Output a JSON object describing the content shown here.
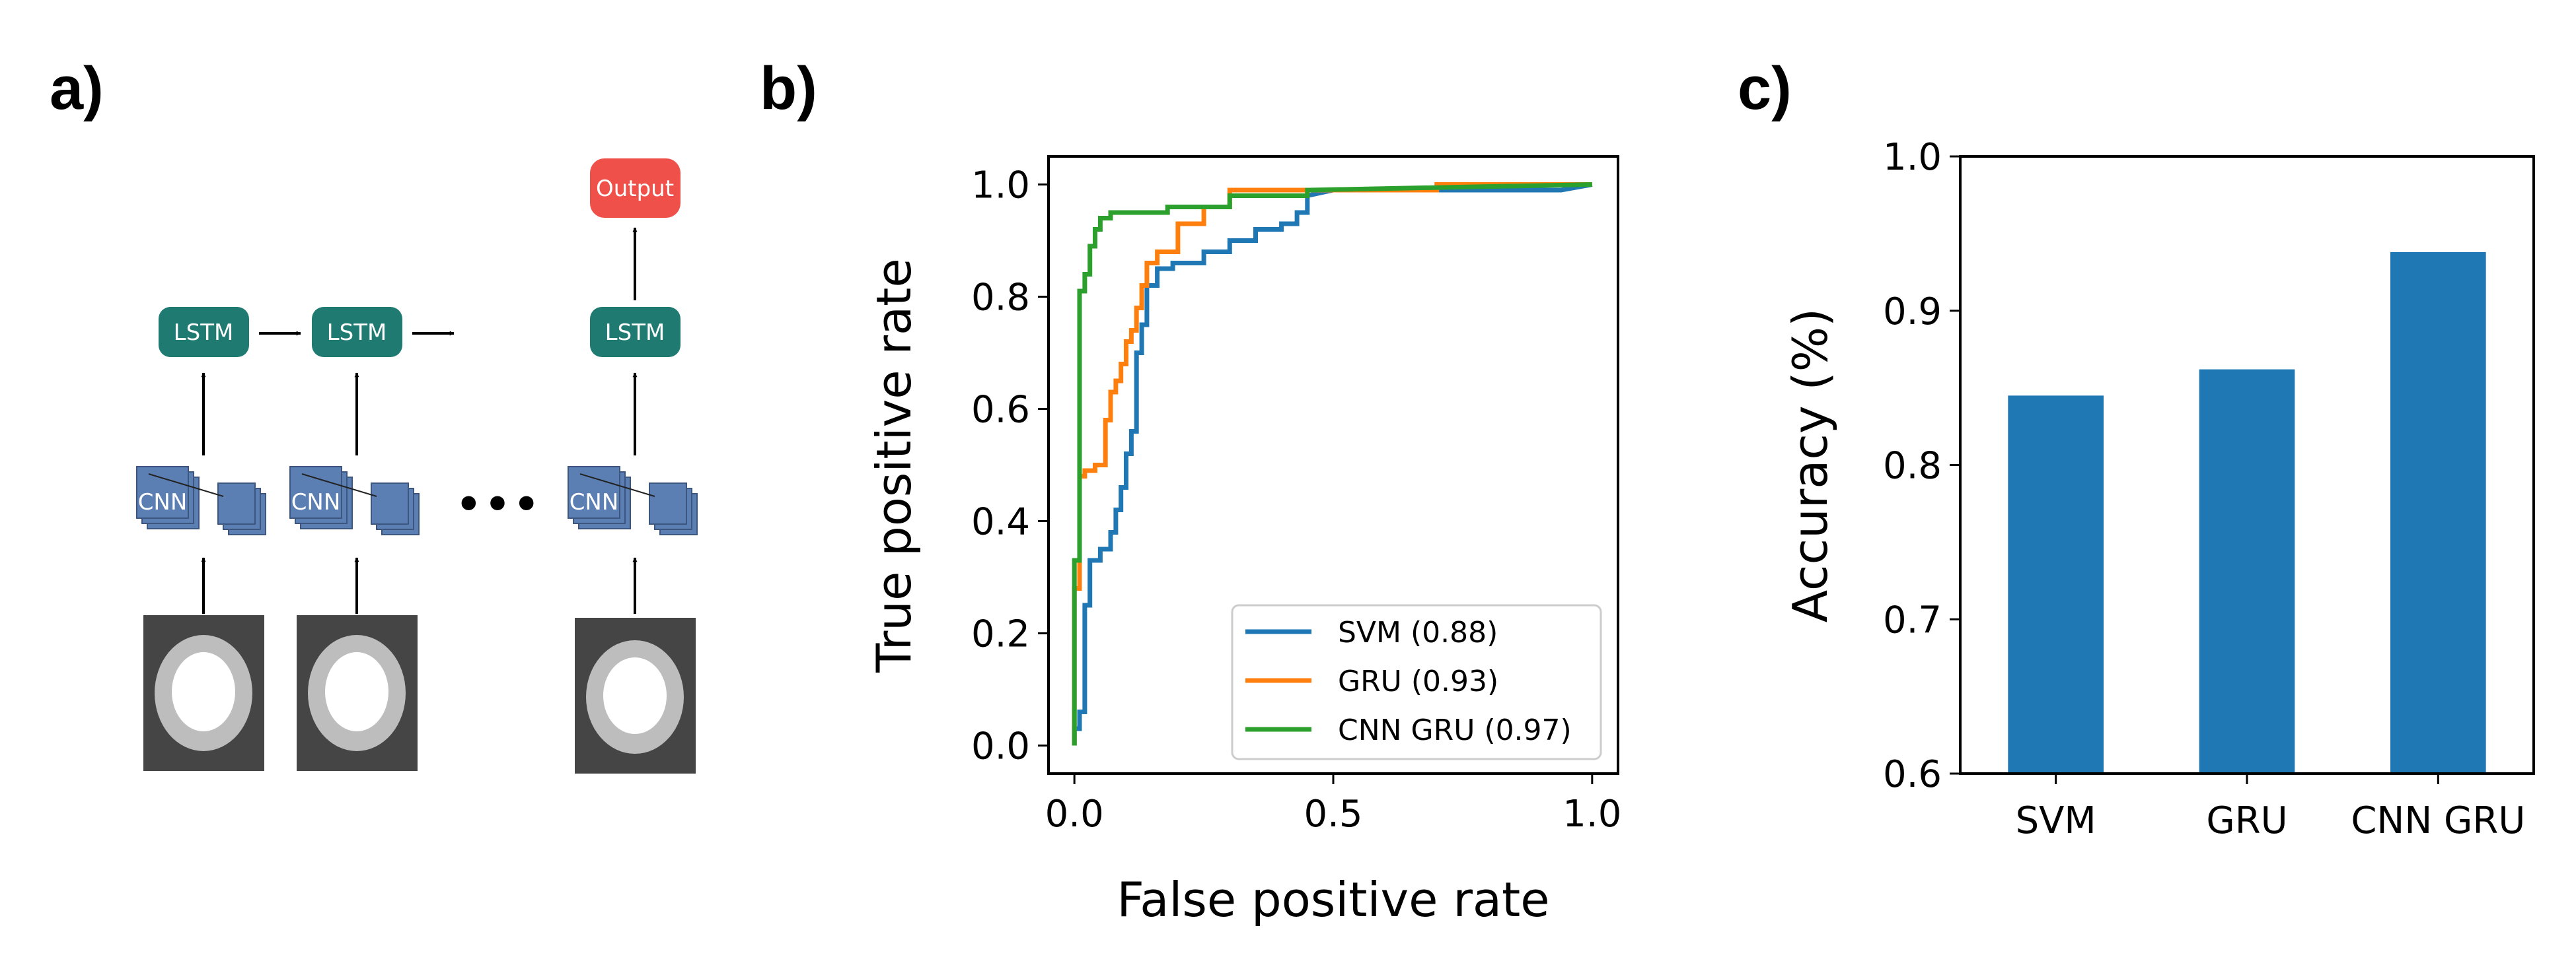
{
  "panels": {
    "a": "a)",
    "b": "b)",
    "c": "c)"
  },
  "diagram": {
    "output_label": "Output",
    "lstm_labels": [
      "LSTM",
      "LSTM",
      "LSTM"
    ],
    "cnn_labels": [
      "CNN",
      "CNN",
      "CNN"
    ],
    "ellipsis": "•••",
    "colors": {
      "lstm": "#1f7a72",
      "output": "#f0504a",
      "cnn": "#5b7fb3",
      "image_bg": "#454545",
      "ring": "#bdbdbd"
    }
  },
  "chart_data": [
    {
      "type": "line",
      "xlabel": "False positive rate",
      "ylabel": "True positive rate",
      "xlim": [
        -0.05,
        1.05
      ],
      "ylim": [
        -0.05,
        1.05
      ],
      "xticks": [
        "0.0",
        "0.5",
        "1.0"
      ],
      "xtick_values": [
        0,
        0.5,
        1
      ],
      "yticks": [
        "0.0",
        "0.2",
        "0.4",
        "0.6",
        "0.8",
        "1.0"
      ],
      "ytick_values": [
        0,
        0.2,
        0.4,
        0.6,
        0.8,
        1
      ],
      "grid": false,
      "legend_position": "lower-right",
      "series": [
        {
          "name": "SVM (0.88)",
          "color": "#1f77b4",
          "x": [
            0.0,
            0.0,
            0.01,
            0.01,
            0.02,
            0.02,
            0.03,
            0.03,
            0.05,
            0.05,
            0.07,
            0.07,
            0.08,
            0.08,
            0.09,
            0.09,
            0.1,
            0.1,
            0.11,
            0.11,
            0.12,
            0.12,
            0.13,
            0.13,
            0.14,
            0.14,
            0.16,
            0.16,
            0.19,
            0.19,
            0.25,
            0.25,
            0.3,
            0.3,
            0.35,
            0.35,
            0.4,
            0.4,
            0.43,
            0.43,
            0.45,
            0.45,
            0.5,
            0.94,
            1.0
          ],
          "y": [
            0.0,
            0.03,
            0.03,
            0.06,
            0.06,
            0.25,
            0.25,
            0.33,
            0.33,
            0.35,
            0.35,
            0.38,
            0.38,
            0.42,
            0.42,
            0.46,
            0.46,
            0.52,
            0.52,
            0.56,
            0.56,
            0.7,
            0.7,
            0.75,
            0.75,
            0.82,
            0.82,
            0.85,
            0.85,
            0.86,
            0.86,
            0.88,
            0.88,
            0.9,
            0.9,
            0.92,
            0.92,
            0.93,
            0.93,
            0.95,
            0.95,
            0.98,
            0.99,
            0.99,
            1.0
          ]
        },
        {
          "name": "GRU (0.93)",
          "color": "#ff7f0e",
          "x": [
            0.0,
            0.0,
            0.01,
            0.01,
            0.02,
            0.02,
            0.04,
            0.04,
            0.06,
            0.06,
            0.07,
            0.07,
            0.08,
            0.08,
            0.09,
            0.09,
            0.1,
            0.1,
            0.11,
            0.11,
            0.12,
            0.12,
            0.13,
            0.13,
            0.14,
            0.14,
            0.16,
            0.16,
            0.2,
            0.2,
            0.25,
            0.25,
            0.3,
            0.3,
            0.7,
            0.7,
            1.0
          ],
          "y": [
            0.0,
            0.28,
            0.28,
            0.48,
            0.48,
            0.49,
            0.49,
            0.5,
            0.5,
            0.58,
            0.58,
            0.63,
            0.63,
            0.65,
            0.65,
            0.68,
            0.68,
            0.72,
            0.72,
            0.74,
            0.74,
            0.78,
            0.78,
            0.82,
            0.82,
            0.86,
            0.86,
            0.88,
            0.88,
            0.93,
            0.93,
            0.96,
            0.96,
            0.99,
            0.99,
            1.0,
            1.0
          ]
        },
        {
          "name": "CNN GRU (0.97)",
          "color": "#2ca02c",
          "x": [
            0.0,
            0.0,
            0.01,
            0.01,
            0.02,
            0.02,
            0.03,
            0.03,
            0.04,
            0.04,
            0.05,
            0.05,
            0.07,
            0.07,
            0.12,
            0.12,
            0.18,
            0.18,
            0.3,
            0.3,
            0.45,
            0.45,
            1.0
          ],
          "y": [
            0.0,
            0.33,
            0.33,
            0.81,
            0.81,
            0.84,
            0.84,
            0.89,
            0.89,
            0.92,
            0.92,
            0.94,
            0.94,
            0.95,
            0.95,
            0.95,
            0.95,
            0.96,
            0.96,
            0.98,
            0.98,
            0.99,
            1.0
          ]
        }
      ]
    },
    {
      "type": "bar",
      "categories": [
        "SVM",
        "GRU",
        "CNN GRU"
      ],
      "values": [
        0.845,
        0.862,
        0.938
      ],
      "color": "#1f77b4",
      "xlabel": "",
      "ylabel": "Accuracy (%)",
      "ylim": [
        0.6,
        1.0
      ],
      "yticks": [
        "0.6",
        "0.7",
        "0.8",
        "0.9",
        "1.0"
      ],
      "ytick_values": [
        0.6,
        0.7,
        0.8,
        0.9,
        1.0
      ],
      "grid": false
    }
  ]
}
